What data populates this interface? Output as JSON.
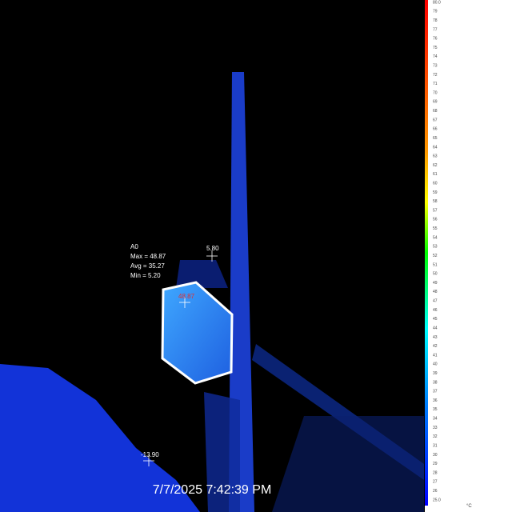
{
  "area": {
    "name": "A0",
    "max": "Max = 48.87",
    "avg": "Avg = 35.27",
    "min": "Min = 5.20"
  },
  "spots": {
    "hot": "48.87",
    "top": "5.80",
    "cold": "-13.90"
  },
  "timestamp": "7/7/2025 7:42:39 PM",
  "scale": {
    "unit": "°C",
    "labels": [
      "80.0",
      "79",
      "78",
      "77",
      "76",
      "75",
      "74",
      "73",
      "72",
      "71",
      "70",
      "69",
      "68",
      "67",
      "66",
      "65",
      "64",
      "63",
      "62",
      "61",
      "60",
      "59",
      "58",
      "57",
      "56",
      "55",
      "54",
      "53",
      "52",
      "51",
      "50",
      "49",
      "48",
      "47",
      "46",
      "45",
      "44",
      "43",
      "42",
      "41",
      "40",
      "39",
      "38",
      "37",
      "36",
      "35",
      "34",
      "33",
      "32",
      "31",
      "30",
      "29",
      "28",
      "27",
      "26",
      "25.0"
    ]
  }
}
